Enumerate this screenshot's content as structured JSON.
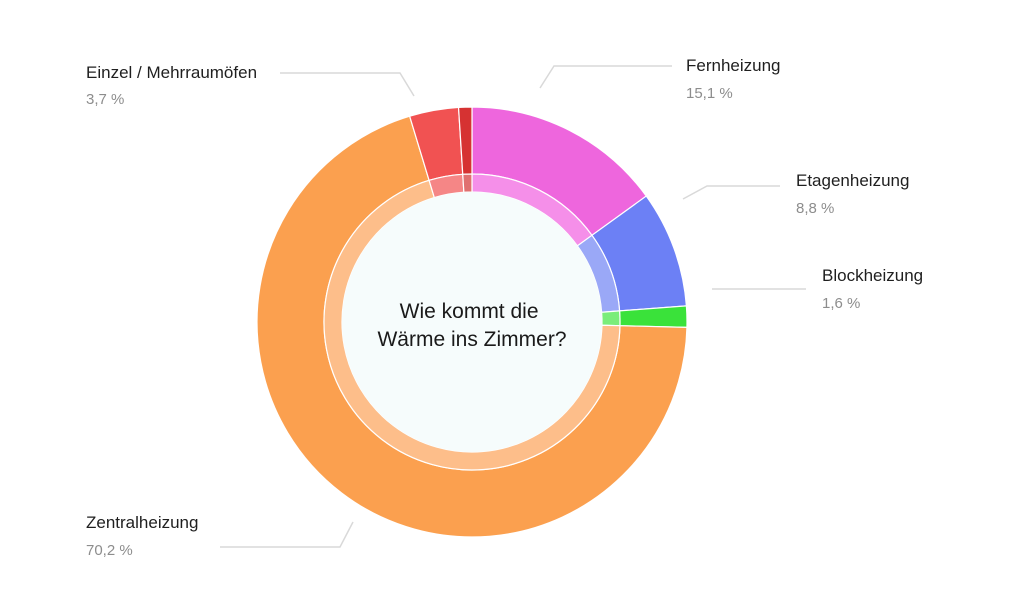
{
  "chart_data": {
    "type": "pie",
    "title": "Wie kommt die Wärme ins Zimmer?",
    "title_lines": [
      "Wie kommt die",
      "Wärme ins Zimmer?"
    ],
    "unit": "%",
    "slices": [
      {
        "label": "Fernheizung",
        "value": 15.1,
        "value_text": "15,1 %",
        "color": "#ee66dd",
        "inner_color": "#f58fe9"
      },
      {
        "label": "Etagenheizung",
        "value": 8.8,
        "value_text": "8,8 %",
        "color": "#6c80f5",
        "inner_color": "#9aa8f7"
      },
      {
        "label": "Blockheizung",
        "value": 1.6,
        "value_text": "1,6 %",
        "color": "#3ae23a",
        "inner_color": "#7aed7a"
      },
      {
        "label": "Zentralheizung",
        "value": 70.2,
        "value_text": "70,2 %",
        "color": "#fba04f",
        "inner_color": "#fdbe8a"
      },
      {
        "label": "Einzel / Mehrraumöfen",
        "value": 3.7,
        "value_text": "3,7 %",
        "color": "#f15252",
        "inner_color": "#f58686"
      },
      {
        "label": "",
        "value": 1.0,
        "value_text": "",
        "color": "#d63232",
        "inner_color": "#e07070"
      }
    ],
    "center_color": "#f6fcfc"
  }
}
